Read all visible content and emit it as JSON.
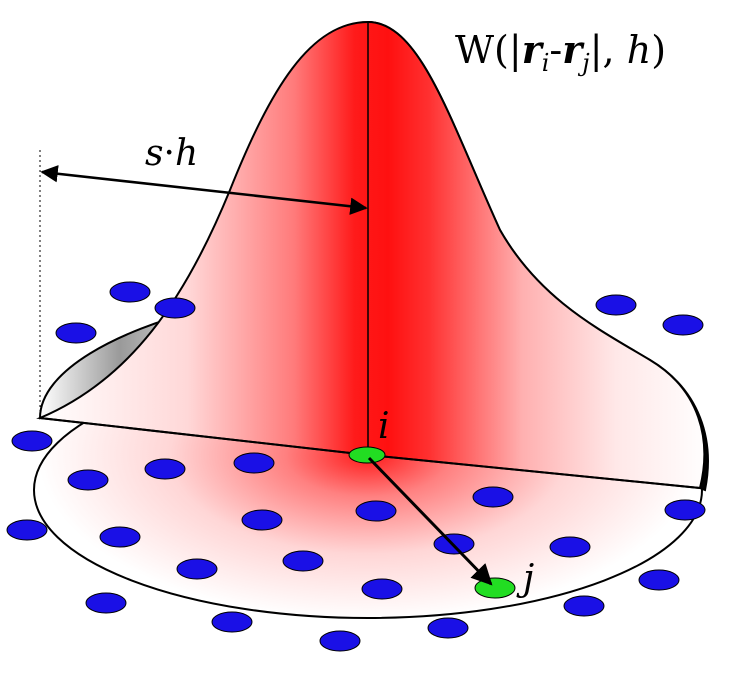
{
  "labels": {
    "kernel_W": "W(|",
    "kernel_r": "r",
    "kernel_i_sub": "i",
    "kernel_minus": "-",
    "kernel_r2": "r",
    "kernel_j_sub": "j",
    "kernel_tail": "|, ",
    "kernel_h": "h",
    "kernel_close": ")",
    "support_s": "s",
    "support_dot": "·",
    "support_h": "h",
    "particle_i": "i",
    "particle_j": "j"
  },
  "colors": {
    "kernel_red": "#ff1010",
    "particle_neighbor": "#1a10e6",
    "particle_focus": "#22dd22",
    "outline": "#000000"
  }
}
